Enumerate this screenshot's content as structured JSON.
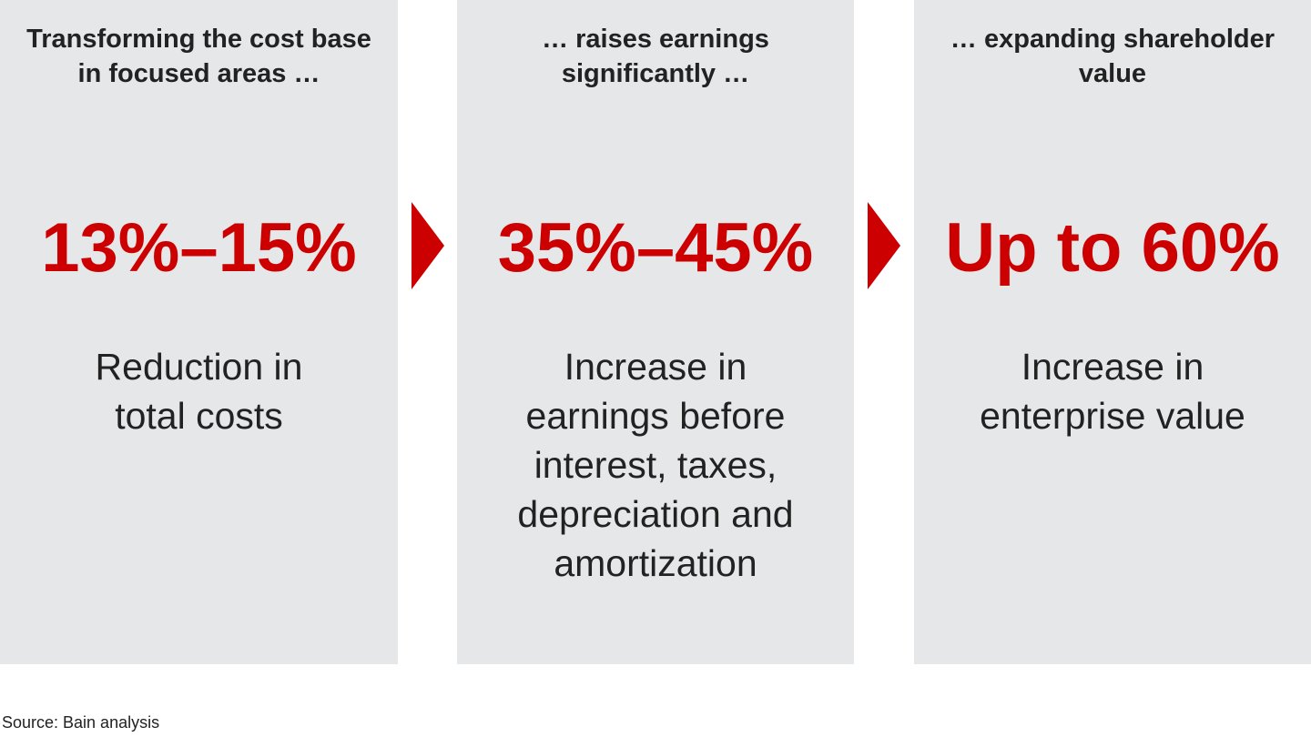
{
  "panels": [
    {
      "heading": [
        "Transforming the cost base",
        "in focused areas …"
      ],
      "figure": "13%–15%",
      "description": [
        "Reduction in",
        "total costs"
      ]
    },
    {
      "heading": [
        "… raises earnings",
        "significantly …"
      ],
      "figure": "35%–45%",
      "description": [
        "Increase in",
        "earnings before",
        "interest, taxes,",
        "depreciation and",
        "amortization"
      ]
    },
    {
      "heading": [
        "… expanding shareholder",
        "value"
      ],
      "figure": "Up to 60%",
      "description": [
        "Increase in",
        "enterprise value"
      ]
    }
  ],
  "source": "Source: Bain analysis"
}
